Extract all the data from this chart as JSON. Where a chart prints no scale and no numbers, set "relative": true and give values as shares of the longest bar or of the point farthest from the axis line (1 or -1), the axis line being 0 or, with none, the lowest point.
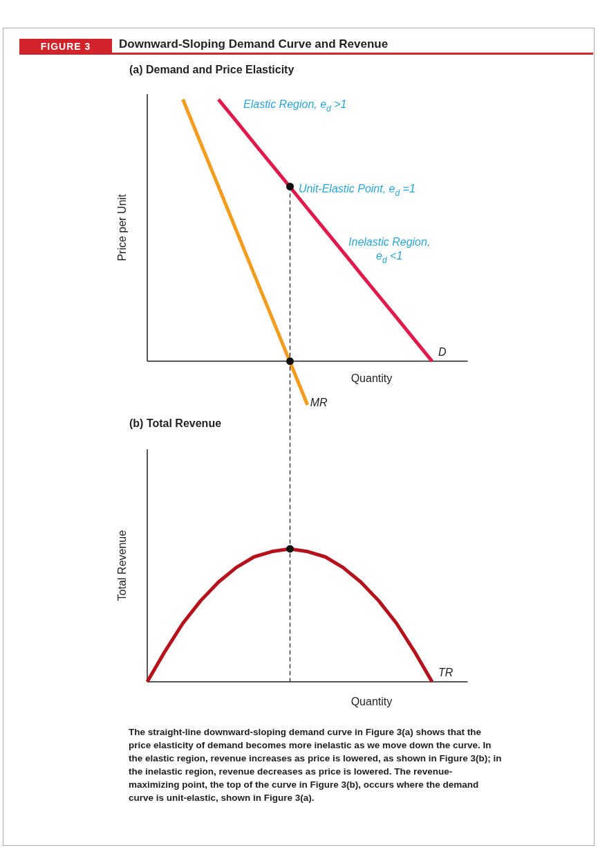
{
  "chart_data": [
    {
      "type": "line",
      "title": "Downward-Sloping Demand Curve and Revenue",
      "subtitle": "(a) Demand and Price Elasticity",
      "xlabel": "Quantity",
      "ylabel": "Price per Unit",
      "relative": true,
      "grid": false,
      "legend": false,
      "tick_labels": false,
      "marker": "none",
      "categories": [
        null,
        null,
        null,
        null,
        null,
        null,
        null,
        null,
        null,
        null,
        null,
        null,
        null,
        null,
        null,
        null,
        null,
        null,
        null
      ],
      "series": [
        {
          "name": "D",
          "color": "#e2194b",
          "values": [
            null,
            null,
            null,
            null,
            1,
            0.917,
            0.833,
            0.75,
            0.667,
            0.583,
            0.5,
            0.417,
            0.333,
            0.25,
            0.167,
            0.083,
            0,
            null,
            null
          ]
        },
        {
          "name": "MR",
          "color": "#f39c1e",
          "values": [
            null,
            null,
            1,
            0.833,
            0.667,
            0.5,
            0.333,
            0.167,
            0,
            -0.167,
            null,
            null,
            null,
            null,
            null,
            null,
            null,
            null,
            null
          ]
        }
      ],
      "annotations": [
        "FIGURE 3",
        "Elastic Region, e$_{d}$ >1",
        "Unit-Elastic Point, e$_{d}$ =1",
        "Inelastic Region, e$_{d}$ <1"
      ]
    },
    {
      "type": "line",
      "title": "(b) Total Revenue",
      "xlabel": "Quantity",
      "ylabel": "Total Revenue",
      "relative": true,
      "grid": false,
      "legend": false,
      "tick_labels": false,
      "marker": "none",
      "categories": [
        null,
        null,
        null,
        null,
        null,
        null,
        null,
        null,
        null,
        null,
        null,
        null,
        null,
        null,
        null,
        null,
        null,
        null,
        null
      ],
      "series": [
        {
          "name": "TR",
          "color": "#b5121b",
          "values": [
            0,
            0.23,
            0.44,
            0.61,
            0.75,
            0.86,
            0.94,
            0.98,
            1,
            0.98,
            0.94,
            0.86,
            0.75,
            0.61,
            0.44,
            0.23,
            0,
            null,
            null
          ]
        }
      ],
      "annotations": [
        "The straight-line downward-sloping demand curve in Figure 3(a) shows that the price elasticity of demand becomes more inelastic as we move down the curve. In the elastic region, revenue increases as price is lowered, as shown in Figure 3(b); in the inelastic region, revenue decreases as price is lowered. The revenue-maximizing point, the top of the curve in Figure 3(b), occurs where the demand curve is unit-elastic, shown in Figure 3(a)."
      ]
    }
  ]
}
